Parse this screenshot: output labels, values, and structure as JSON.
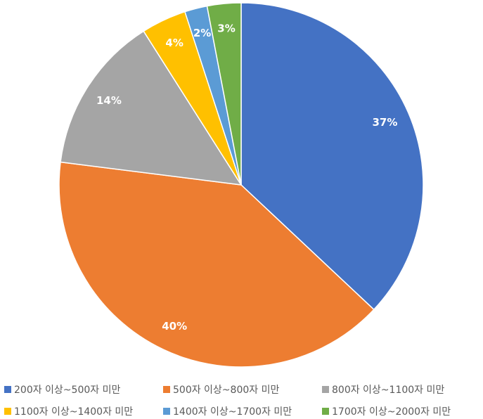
{
  "chart_data": {
    "type": "pie",
    "categories": [
      "200자 이상~500자 미만",
      "500자 이상~800자 미만",
      "800자 이상~1100자 미만",
      "1100자 이상~1400자 미만",
      "1400자 이상~1700자 미만",
      "1700자 이상~2000자 미만"
    ],
    "values": [
      37,
      40,
      14,
      4,
      2,
      3
    ],
    "value_labels": [
      "37%",
      "40%",
      "14%",
      "4%",
      "2%",
      "3%"
    ],
    "colors": [
      "#4472c4",
      "#ed7d31",
      "#a5a5a5",
      "#ffc000",
      "#5b9bd5",
      "#70ad47"
    ],
    "legend": "bottom"
  }
}
